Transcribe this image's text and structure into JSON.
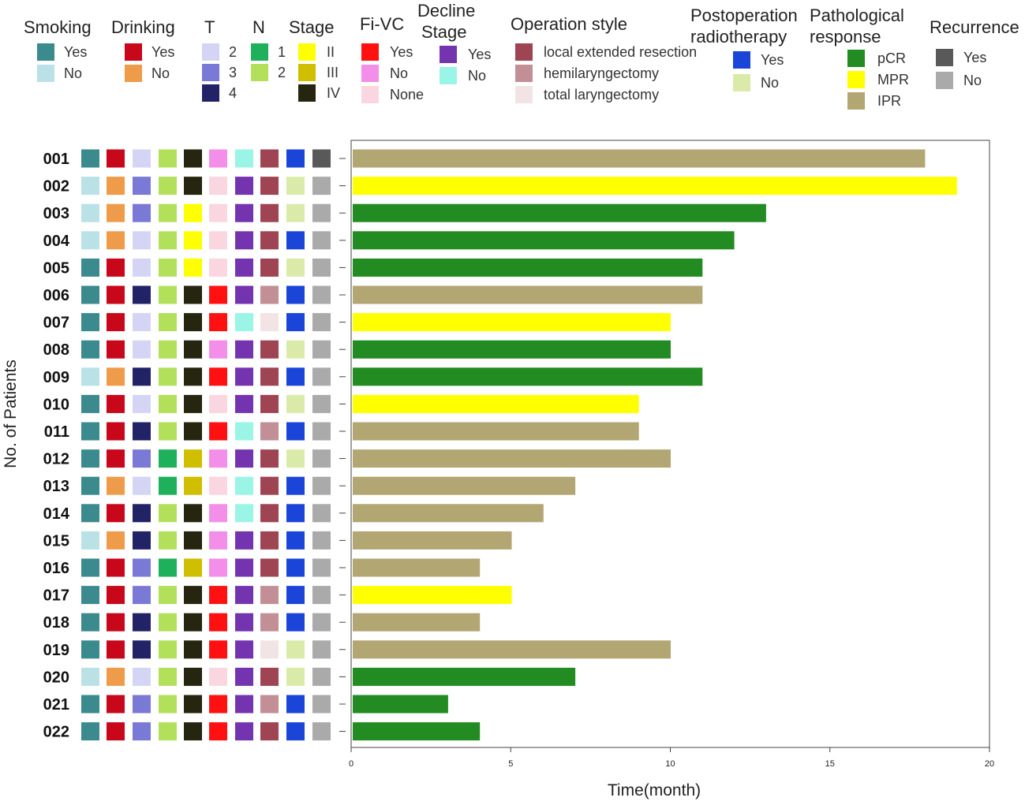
{
  "colors": {
    "Smoking": {
      "Yes": "#3a8a8e",
      "No": "#b9e1e6"
    },
    "Drinking": {
      "Yes": "#c8071b",
      "No": "#ef9c4a"
    },
    "T": {
      "2": "#d4d4f5",
      "3": "#7b79d6",
      "4": "#222266"
    },
    "N": {
      "1": "#1fb05c",
      "2": "#b3e05b"
    },
    "Stage": {
      "II": "#ffff00",
      "III": "#cfbf00",
      "IV": "#262610"
    },
    "Fi-VC": {
      "Yes": "#ff1111",
      "No": "#f38ee9",
      "None": "#fad6e0"
    },
    "Decline Stage": {
      "Yes": "#7434b0",
      "No": "#9af5e6"
    },
    "Operation style": {
      "local extended resection": "#9e4452",
      "hemilaryngectomy": "#c28f96",
      "total laryngectomy": "#f2e4e4"
    },
    "Postoperation radiotherapy": {
      "Yes": "#1b45d8",
      "No": "#daeba9"
    },
    "Pathological response": {
      "pCR": "#228b22",
      "MPR": "#ffff00",
      "IPR": "#b2a673"
    },
    "Recurrence": {
      "Yes": "#595959",
      "No": "#aaaaaa"
    }
  },
  "chart_data": {
    "type": "bar",
    "orientation": "horizontal",
    "xlabel": "Time(month)",
    "ylabel": "No. of Patients",
    "xlim": [
      0,
      20
    ],
    "xticks": [
      "0",
      "5",
      "10",
      "15",
      "20"
    ],
    "legend": [
      {
        "title": "Smoking",
        "entries": [
          "Yes",
          "No"
        ]
      },
      {
        "title": "Drinking",
        "entries": [
          "Yes",
          "No"
        ]
      },
      {
        "title": "T",
        "entries": [
          "2",
          "3",
          "4"
        ]
      },
      {
        "title": "N",
        "entries": [
          "1",
          "2"
        ]
      },
      {
        "title": "Stage",
        "entries": [
          "II",
          "III",
          "IV"
        ]
      },
      {
        "title": "Fi-VC",
        "entries": [
          "Yes",
          "No",
          "None"
        ]
      },
      {
        "title": "Decline Stage",
        "title_lines": [
          "Decline",
          "Stage"
        ],
        "entries": [
          "Yes",
          "No"
        ]
      },
      {
        "title": "Operation style",
        "entries": [
          "local extended resection",
          "hemilaryngectomy",
          "total laryngectomy"
        ]
      },
      {
        "title": "Postoperation radiotherapy",
        "title_lines": [
          "Postoperation",
          "radiotherapy"
        ],
        "entries": [
          "Yes",
          "No"
        ]
      },
      {
        "title": "Pathological response",
        "title_lines": [
          "Pathological",
          "response"
        ],
        "entries": [
          "pCR",
          "MPR",
          "IPR"
        ]
      },
      {
        "title": "Recurrence",
        "entries": [
          "Yes",
          "No"
        ]
      }
    ],
    "tile_columns": [
      "Smoking",
      "Drinking",
      "T",
      "N",
      "Stage",
      "Fi-VC",
      "Decline Stage",
      "Operation style",
      "Postoperation radiotherapy",
      "Recurrence"
    ],
    "patients": [
      {
        "id": "001",
        "months": 18,
        "Smoking": "Yes",
        "Drinking": "Yes",
        "T": "2",
        "N": "2",
        "Stage": "IV",
        "Fi-VC": "No",
        "Decline Stage": "No",
        "Operation style": "local extended resection",
        "Postoperation radiotherapy": "Yes",
        "Pathological response": "IPR",
        "Recurrence": "Yes"
      },
      {
        "id": "002",
        "months": 19,
        "Smoking": "No",
        "Drinking": "No",
        "T": "3",
        "N": "2",
        "Stage": "IV",
        "Fi-VC": "None",
        "Decline Stage": "Yes",
        "Operation style": "local extended resection",
        "Postoperation radiotherapy": "No",
        "Pathological response": "MPR",
        "Recurrence": "No"
      },
      {
        "id": "003",
        "months": 13,
        "Smoking": "No",
        "Drinking": "No",
        "T": "3",
        "N": "2",
        "Stage": "II",
        "Fi-VC": "None",
        "Decline Stage": "Yes",
        "Operation style": "local extended resection",
        "Postoperation radiotherapy": "No",
        "Pathological response": "pCR",
        "Recurrence": "No"
      },
      {
        "id": "004",
        "months": 12,
        "Smoking": "No",
        "Drinking": "No",
        "T": "2",
        "N": "2",
        "Stage": "II",
        "Fi-VC": "None",
        "Decline Stage": "Yes",
        "Operation style": "local extended resection",
        "Postoperation radiotherapy": "Yes",
        "Pathological response": "pCR",
        "Recurrence": "No"
      },
      {
        "id": "005",
        "months": 11,
        "Smoking": "Yes",
        "Drinking": "Yes",
        "T": "2",
        "N": "2",
        "Stage": "II",
        "Fi-VC": "None",
        "Decline Stage": "Yes",
        "Operation style": "local extended resection",
        "Postoperation radiotherapy": "No",
        "Pathological response": "pCR",
        "Recurrence": "No"
      },
      {
        "id": "006",
        "months": 11,
        "Smoking": "Yes",
        "Drinking": "Yes",
        "T": "4",
        "N": "2",
        "Stage": "IV",
        "Fi-VC": "Yes",
        "Decline Stage": "Yes",
        "Operation style": "hemilaryngectomy",
        "Postoperation radiotherapy": "Yes",
        "Pathological response": "IPR",
        "Recurrence": "No"
      },
      {
        "id": "007",
        "months": 10,
        "Smoking": "Yes",
        "Drinking": "Yes",
        "T": "2",
        "N": "2",
        "Stage": "IV",
        "Fi-VC": "Yes",
        "Decline Stage": "No",
        "Operation style": "total laryngectomy",
        "Postoperation radiotherapy": "Yes",
        "Pathological response": "MPR",
        "Recurrence": "No"
      },
      {
        "id": "008",
        "months": 10,
        "Smoking": "Yes",
        "Drinking": "Yes",
        "T": "2",
        "N": "2",
        "Stage": "IV",
        "Fi-VC": "No",
        "Decline Stage": "Yes",
        "Operation style": "local extended resection",
        "Postoperation radiotherapy": "No",
        "Pathological response": "pCR",
        "Recurrence": "No"
      },
      {
        "id": "009",
        "months": 11,
        "Smoking": "No",
        "Drinking": "No",
        "T": "4",
        "N": "2",
        "Stage": "IV",
        "Fi-VC": "Yes",
        "Decline Stage": "Yes",
        "Operation style": "local extended resection",
        "Postoperation radiotherapy": "Yes",
        "Pathological response": "pCR",
        "Recurrence": "No"
      },
      {
        "id": "010",
        "months": 9,
        "Smoking": "Yes",
        "Drinking": "Yes",
        "T": "2",
        "N": "2",
        "Stage": "IV",
        "Fi-VC": "None",
        "Decline Stage": "Yes",
        "Operation style": "local extended resection",
        "Postoperation radiotherapy": "No",
        "Pathological response": "MPR",
        "Recurrence": "No"
      },
      {
        "id": "011",
        "months": 9,
        "Smoking": "Yes",
        "Drinking": "Yes",
        "T": "4",
        "N": "2",
        "Stage": "IV",
        "Fi-VC": "Yes",
        "Decline Stage": "No",
        "Operation style": "hemilaryngectomy",
        "Postoperation radiotherapy": "Yes",
        "Pathological response": "IPR",
        "Recurrence": "No"
      },
      {
        "id": "012",
        "months": 10,
        "Smoking": "Yes",
        "Drinking": "Yes",
        "T": "3",
        "N": "1",
        "Stage": "III",
        "Fi-VC": "No",
        "Decline Stage": "Yes",
        "Operation style": "local extended resection",
        "Postoperation radiotherapy": "No",
        "Pathological response": "IPR",
        "Recurrence": "No"
      },
      {
        "id": "013",
        "months": 7,
        "Smoking": "Yes",
        "Drinking": "No",
        "T": "2",
        "N": "1",
        "Stage": "III",
        "Fi-VC": "None",
        "Decline Stage": "No",
        "Operation style": "local extended resection",
        "Postoperation radiotherapy": "Yes",
        "Pathological response": "IPR",
        "Recurrence": "No"
      },
      {
        "id": "014",
        "months": 6,
        "Smoking": "Yes",
        "Drinking": "Yes",
        "T": "4",
        "N": "2",
        "Stage": "IV",
        "Fi-VC": "No",
        "Decline Stage": "No",
        "Operation style": "local extended resection",
        "Postoperation radiotherapy": "Yes",
        "Pathological response": "IPR",
        "Recurrence": "No"
      },
      {
        "id": "015",
        "months": 5,
        "Smoking": "No",
        "Drinking": "No",
        "T": "4",
        "N": "2",
        "Stage": "IV",
        "Fi-VC": "No",
        "Decline Stage": "Yes",
        "Operation style": "local extended resection",
        "Postoperation radiotherapy": "Yes",
        "Pathological response": "IPR",
        "Recurrence": "No"
      },
      {
        "id": "016",
        "months": 4,
        "Smoking": "Yes",
        "Drinking": "Yes",
        "T": "3",
        "N": "1",
        "Stage": "III",
        "Fi-VC": "No",
        "Decline Stage": "Yes",
        "Operation style": "local extended resection",
        "Postoperation radiotherapy": "Yes",
        "Pathological response": "IPR",
        "Recurrence": "No"
      },
      {
        "id": "017",
        "months": 5,
        "Smoking": "Yes",
        "Drinking": "Yes",
        "T": "3",
        "N": "2",
        "Stage": "IV",
        "Fi-VC": "Yes",
        "Decline Stage": "Yes",
        "Operation style": "hemilaryngectomy",
        "Postoperation radiotherapy": "Yes",
        "Pathological response": "MPR",
        "Recurrence": "No"
      },
      {
        "id": "018",
        "months": 4,
        "Smoking": "Yes",
        "Drinking": "Yes",
        "T": "4",
        "N": "2",
        "Stage": "IV",
        "Fi-VC": "Yes",
        "Decline Stage": "Yes",
        "Operation style": "hemilaryngectomy",
        "Postoperation radiotherapy": "Yes",
        "Pathological response": "IPR",
        "Recurrence": "No"
      },
      {
        "id": "019",
        "months": 10,
        "Smoking": "Yes",
        "Drinking": "Yes",
        "T": "4",
        "N": "2",
        "Stage": "IV",
        "Fi-VC": "Yes",
        "Decline Stage": "Yes",
        "Operation style": "total laryngectomy",
        "Postoperation radiotherapy": "No",
        "Pathological response": "IPR",
        "Recurrence": "No"
      },
      {
        "id": "020",
        "months": 7,
        "Smoking": "No",
        "Drinking": "No",
        "T": "2",
        "N": "2",
        "Stage": "IV",
        "Fi-VC": "None",
        "Decline Stage": "Yes",
        "Operation style": "local extended resection",
        "Postoperation radiotherapy": "No",
        "Pathological response": "pCR",
        "Recurrence": "No"
      },
      {
        "id": "021",
        "months": 3,
        "Smoking": "Yes",
        "Drinking": "Yes",
        "T": "3",
        "N": "2",
        "Stage": "IV",
        "Fi-VC": "Yes",
        "Decline Stage": "Yes",
        "Operation style": "hemilaryngectomy",
        "Postoperation radiotherapy": "Yes",
        "Pathological response": "pCR",
        "Recurrence": "No"
      },
      {
        "id": "022",
        "months": 4,
        "Smoking": "Yes",
        "Drinking": "Yes",
        "T": "3",
        "N": "2",
        "Stage": "IV",
        "Fi-VC": "Yes",
        "Decline Stage": "Yes",
        "Operation style": "local extended resection",
        "Postoperation radiotherapy": "Yes",
        "Pathological response": "pCR",
        "Recurrence": "No"
      }
    ]
  }
}
